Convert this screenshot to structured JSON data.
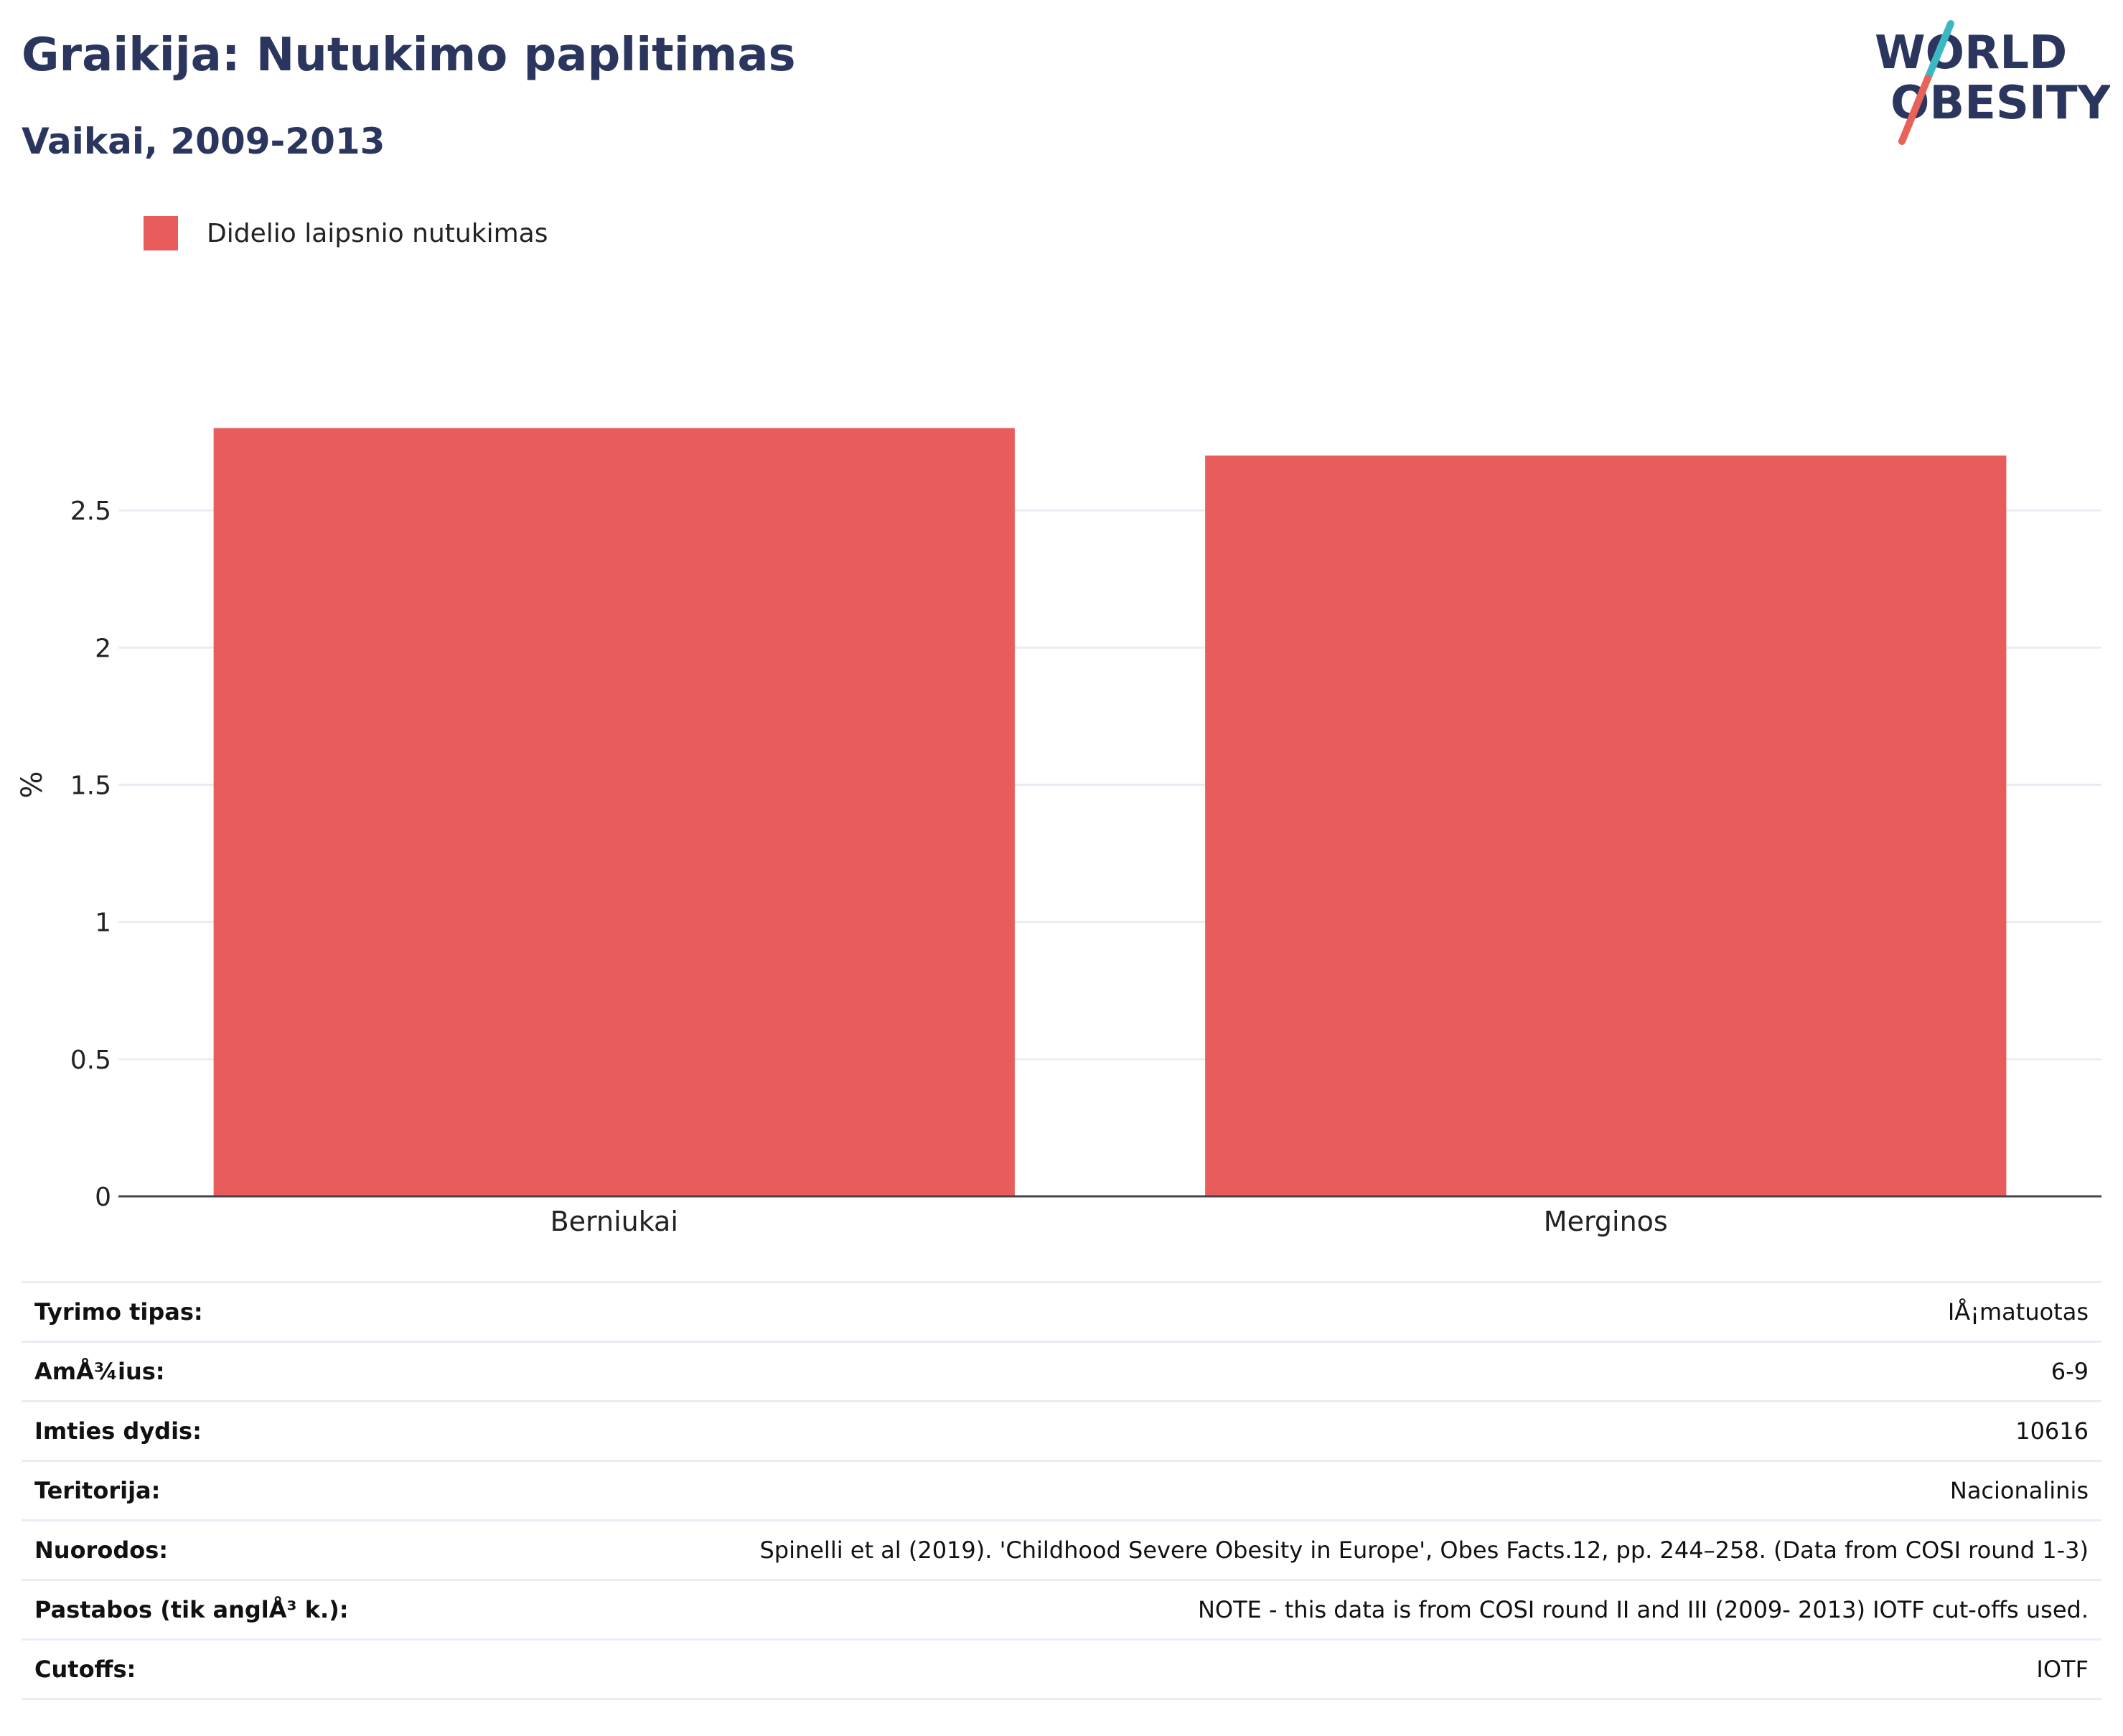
{
  "header": {
    "title": "Graikija: Nutukimo paplitimas",
    "subtitle": "Vaikai, 2009-2013"
  },
  "logo": {
    "line1": "WORLD",
    "line2": "OBESITY",
    "colors": {
      "text": "#2b365e",
      "slash_top": "#3bb8c3",
      "slash_bottom": "#e8625a"
    }
  },
  "legend": {
    "items": [
      {
        "label": "Didelio laipsnio nutukimas",
        "color": "#e95c5c"
      }
    ]
  },
  "chart_data": {
    "type": "bar",
    "categories": [
      "Berniukai",
      "Merginos"
    ],
    "series": [
      {
        "name": "Didelio laipsnio nutukimas",
        "values": [
          2.8,
          2.7
        ],
        "color": "#e95c5c"
      }
    ],
    "ylabel": "%",
    "xlabel": "",
    "ylim": [
      0,
      3.0
    ],
    "yticks": [
      0,
      0.5,
      1,
      1.5,
      2,
      2.5
    ],
    "ytick_labels": [
      "0",
      "0.5",
      "1",
      "1.5",
      "2",
      "2.5"
    ],
    "grid": true
  },
  "info_table": [
    {
      "label": "Tyrimo tipas:",
      "value": "IÅ¡matuotas"
    },
    {
      "label": "AmÅ¾ius:",
      "value": "6-9"
    },
    {
      "label": "Imties dydis:",
      "value": "10616"
    },
    {
      "label": "Teritorija:",
      "value": "Nacionalinis"
    },
    {
      "label": "Nuorodos:",
      "value": "Spinelli et al (2019). 'Childhood Severe Obesity in Europe', Obes Facts.12, pp. 244–258. (Data from COSI round 1-3)"
    },
    {
      "label": "Pastabos (tik anglÅ³ k.):",
      "value": "NOTE - this data is from COSI round II and III (2009- 2013) IOTF cut-offs used."
    },
    {
      "label": "Cutoffs:",
      "value": "IOTF"
    }
  ]
}
